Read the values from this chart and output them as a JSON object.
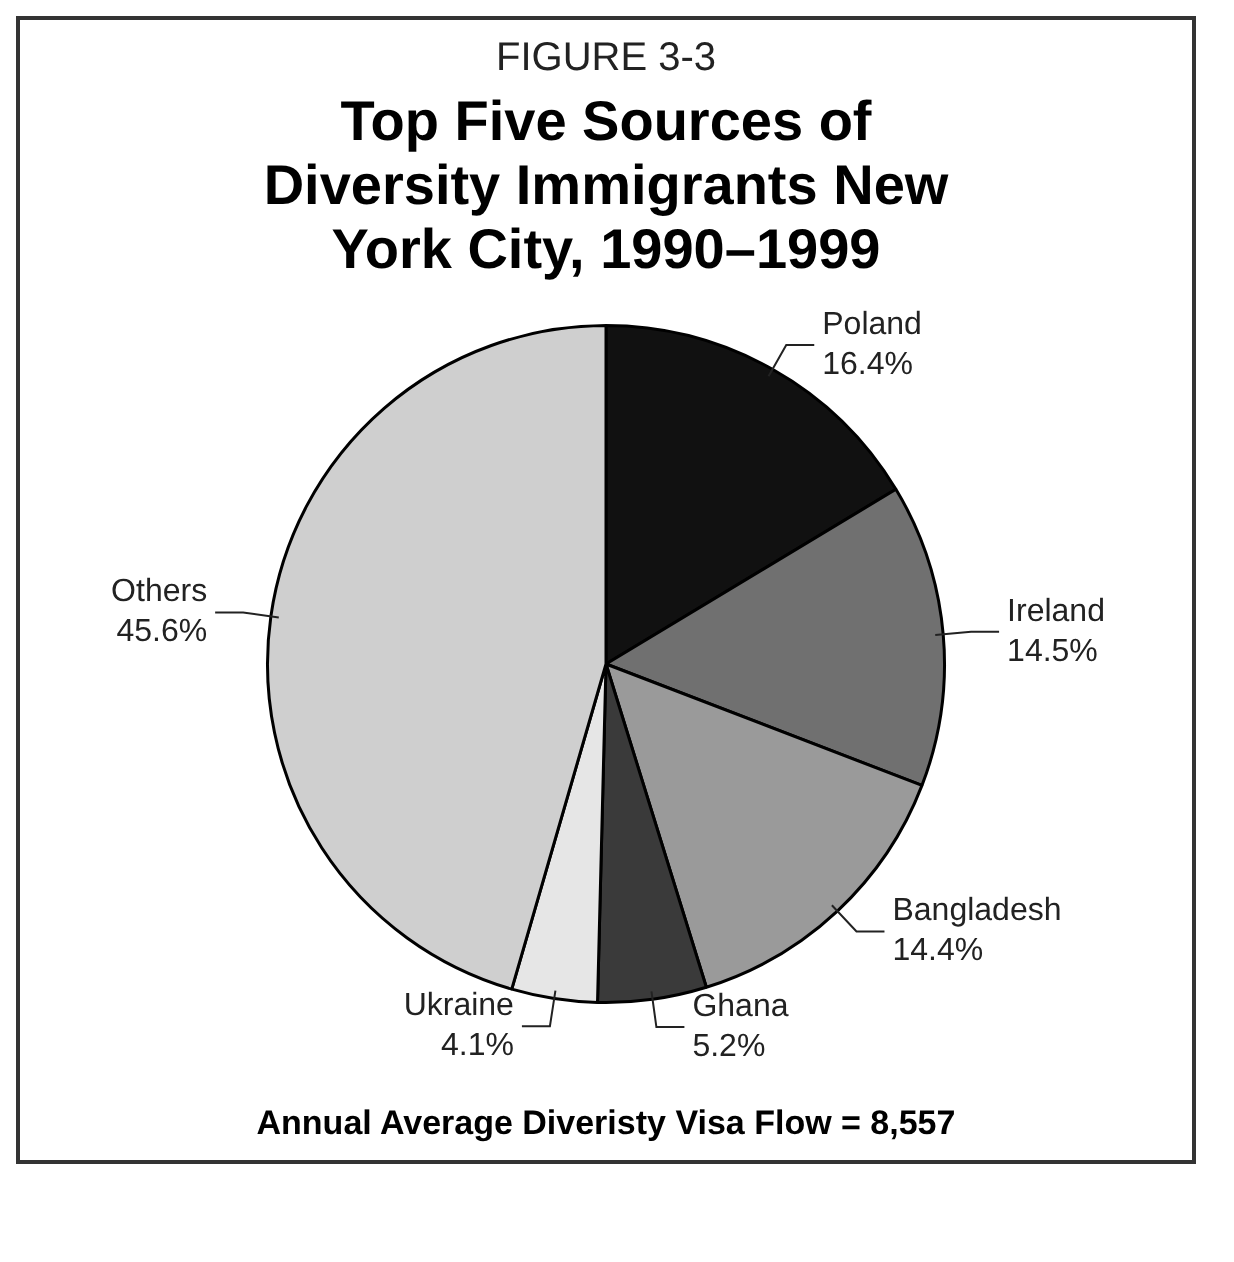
{
  "chart_data": {
    "type": "pie",
    "subtitle": "FIGURE 3-3",
    "title": "Top Five Sources of Diversity Immigrants New York City, 1990–1999",
    "categories": [
      "Poland",
      "Ireland",
      "Bangladesh",
      "Ghana",
      "Ukraine",
      "Others"
    ],
    "values": [
      16.4,
      14.5,
      14.4,
      5.2,
      4.1,
      45.6
    ],
    "value_labels": [
      "16.4%",
      "14.5%",
      "14.4%",
      "5.2%",
      "4.1%",
      "45.6%"
    ],
    "colors": [
      "#111111",
      "#707070",
      "#9a9a9a",
      "#3a3a3a",
      "#e6e6e6",
      "#cfcfcf"
    ],
    "legend": false,
    "annotations": [
      "Annual Average Diveristy Visa Flow = 8,557"
    ]
  }
}
